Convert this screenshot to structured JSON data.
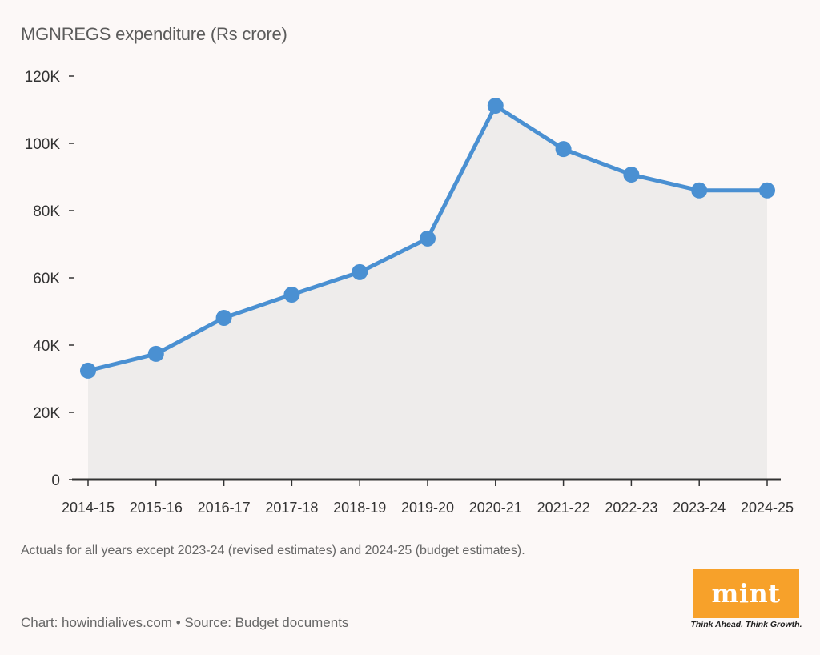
{
  "chart_data": {
    "type": "area",
    "title": "MGNREGS expenditure (Rs crore)",
    "xlabel": "",
    "ylabel": "",
    "categories": [
      "2014-15",
      "2015-16",
      "2016-17",
      "2017-18",
      "2018-19",
      "2019-20",
      "2020-21",
      "2021-22",
      "2022-23",
      "2023-24",
      "2024-25"
    ],
    "series": [
      {
        "name": "MGNREGS expenditure",
        "values": [
          32400,
          37400,
          48100,
          55000,
          61700,
          71700,
          111200,
          98300,
          90700,
          86000,
          86000
        ]
      }
    ],
    "ylim": [
      0,
      120000
    ],
    "yticks": [
      0,
      20000,
      40000,
      60000,
      80000,
      100000,
      120000
    ],
    "ytick_labels": [
      "0",
      "20K",
      "40K",
      "60K",
      "80K",
      "100K",
      "120K"
    ],
    "grid": false,
    "colors": {
      "line": "#4a90d2",
      "area": "#eeeceb",
      "axis": "#333333"
    }
  },
  "note": "Actuals for all years except 2023-24 (revised estimates) and 2024-25 (budget estimates).",
  "credit": "Chart: howindialives.com • Source: Budget documents",
  "logo": {
    "text": "mint",
    "tagline": "Think Ahead. Think Growth.",
    "color": "#f7a12a"
  }
}
